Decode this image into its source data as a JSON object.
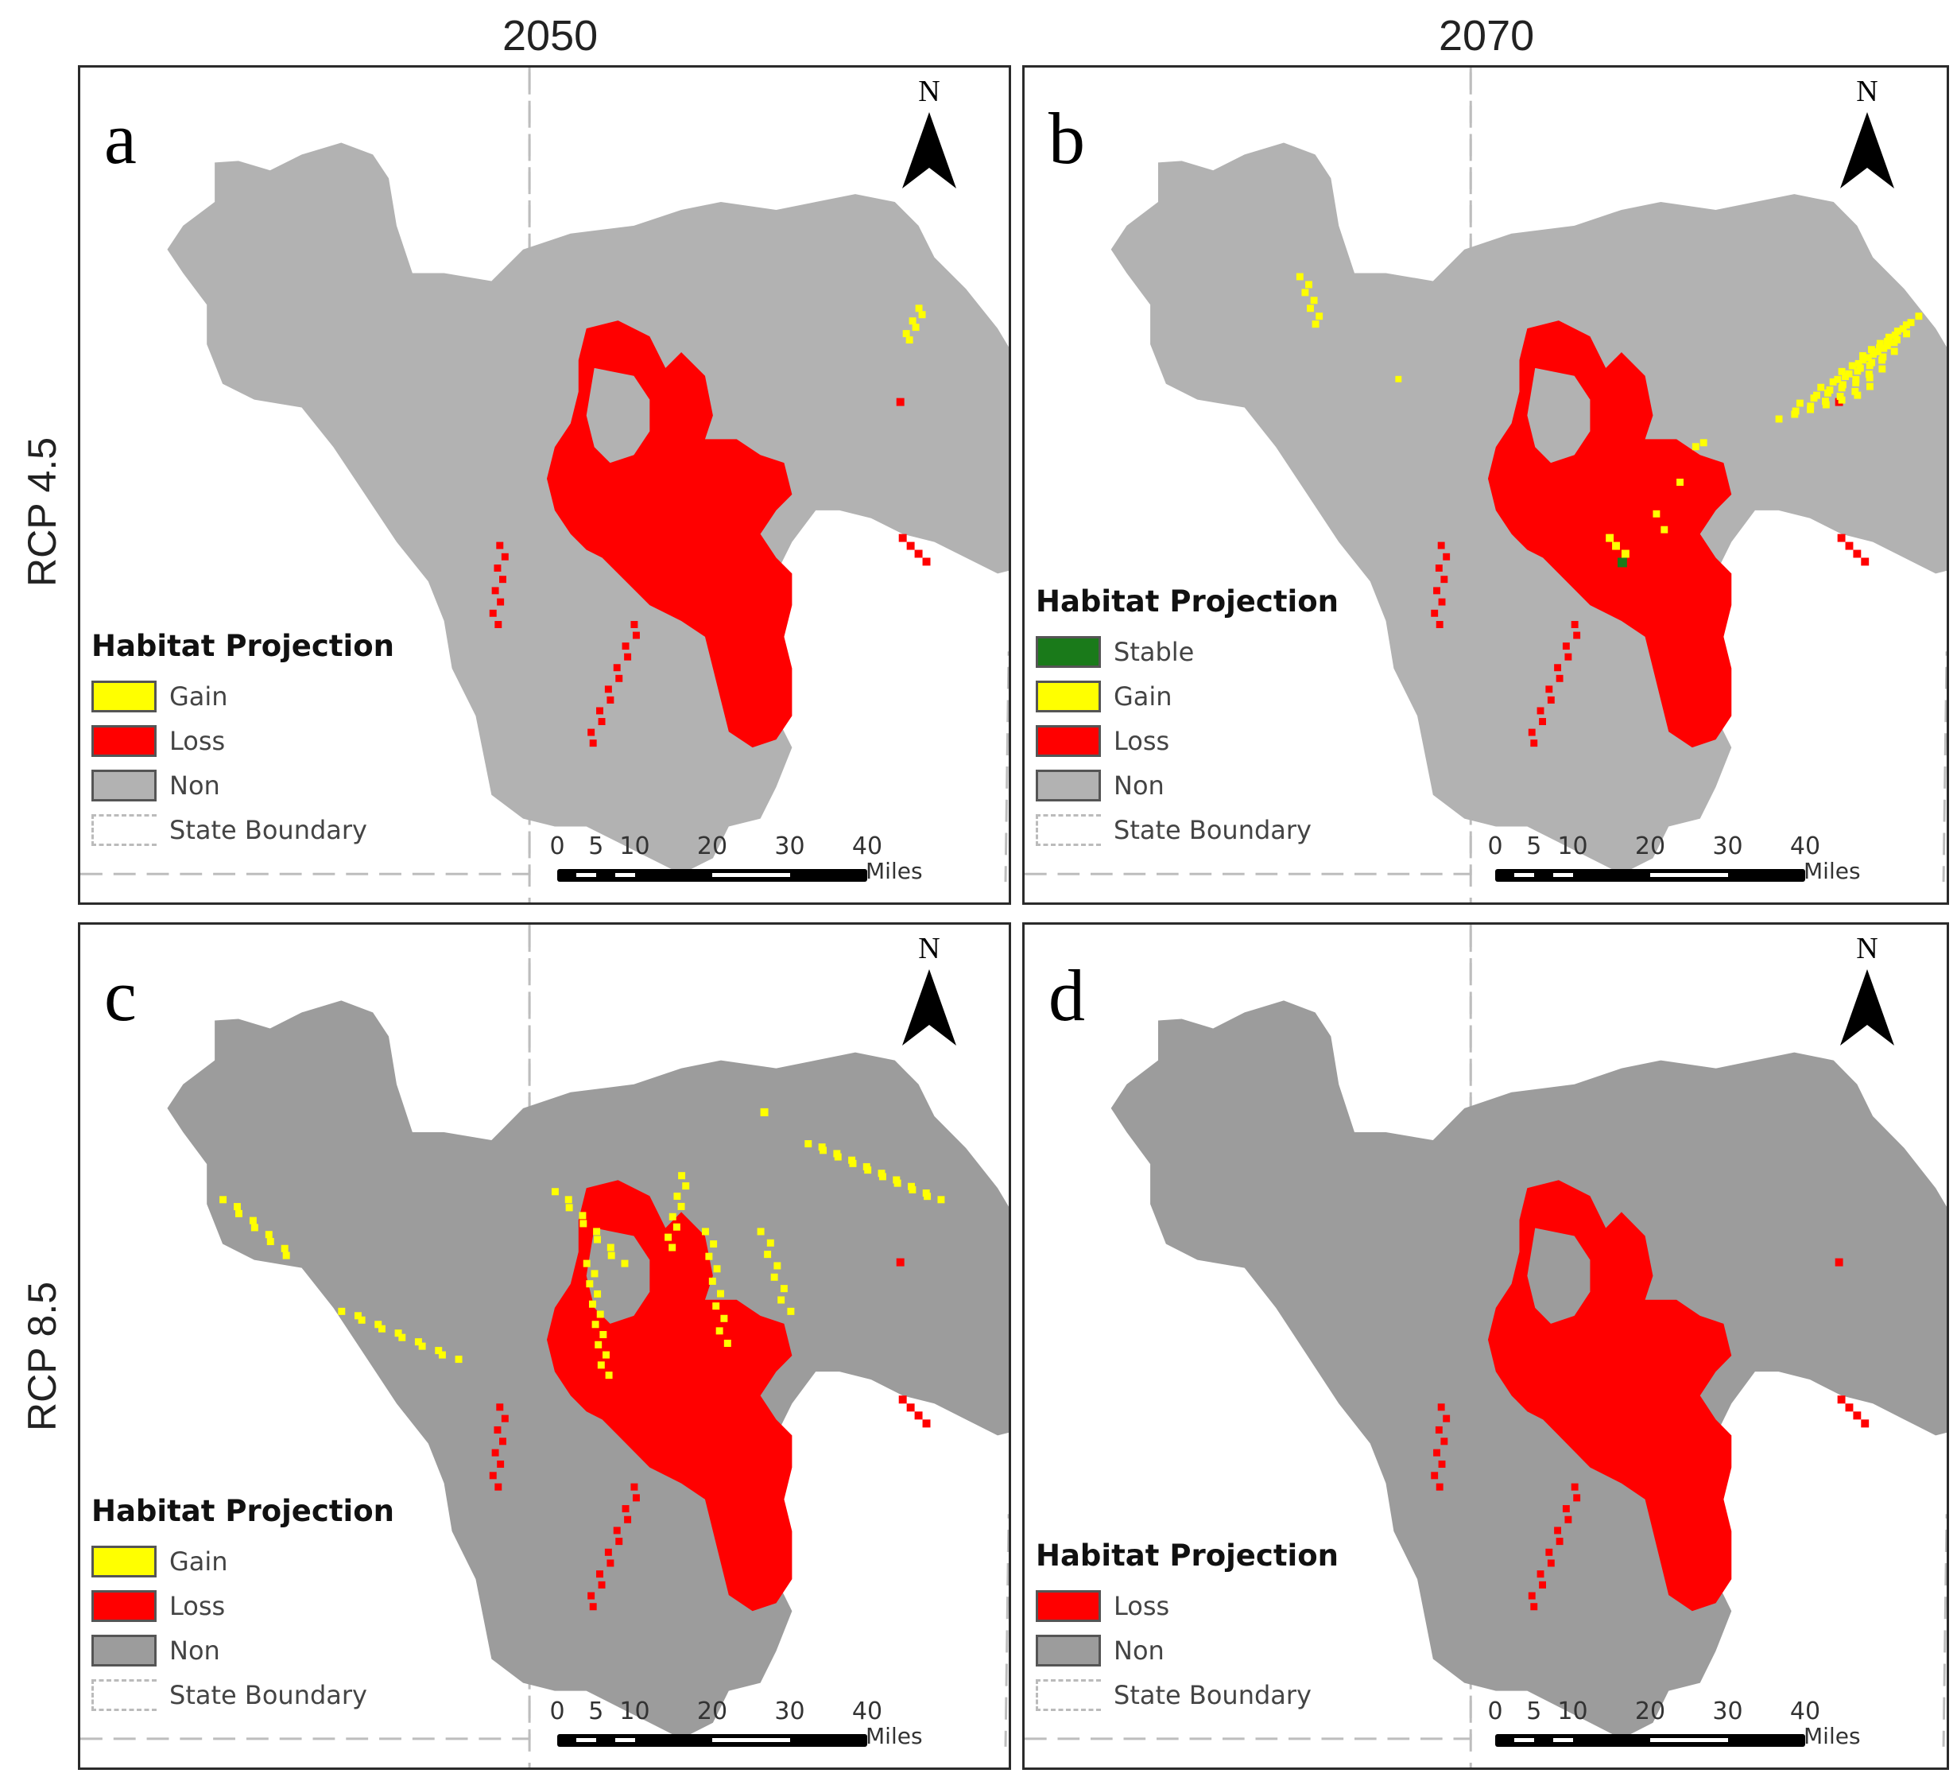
{
  "columns": [
    "2050",
    "2070"
  ],
  "rows": [
    "RCP 4.5",
    "RCP 8.5"
  ],
  "colors": {
    "gain": "#ffff00",
    "loss": "#ff0000",
    "stable": "#1a7a1a",
    "non_light": "#b2b2b2",
    "non_dark": "#9c9c9c",
    "boundary": "#bdbdbd"
  },
  "north_arrow": {
    "letter": "N",
    "icon": "north-arrow-icon"
  },
  "scale": {
    "ticks": [
      "0",
      "5",
      "10",
      "20",
      "30",
      "40"
    ],
    "unit": "Miles"
  },
  "panels": [
    {
      "letter": "a",
      "legend": {
        "title": "Habitat Projection",
        "items": [
          {
            "label": "Gain",
            "key": "gain"
          },
          {
            "label": "Loss",
            "key": "loss"
          },
          {
            "label": "Non",
            "key": "non"
          },
          {
            "label": "State Boundary",
            "key": "boundary"
          }
        ]
      }
    },
    {
      "letter": "b",
      "legend": {
        "title": "Habitat Projection",
        "items": [
          {
            "label": "Stable",
            "key": "stable"
          },
          {
            "label": "Gain",
            "key": "gain"
          },
          {
            "label": "Loss",
            "key": "loss"
          },
          {
            "label": "Non",
            "key": "non"
          },
          {
            "label": "State Boundary",
            "key": "boundary"
          }
        ]
      }
    },
    {
      "letter": "c",
      "legend": {
        "title": "Habitat Projection",
        "items": [
          {
            "label": "Gain",
            "key": "gain"
          },
          {
            "label": "Loss",
            "key": "loss"
          },
          {
            "label": "Non",
            "key": "non"
          },
          {
            "label": "State Boundary",
            "key": "boundary"
          }
        ]
      }
    },
    {
      "letter": "d",
      "legend": {
        "title": "Habitat Projection",
        "items": [
          {
            "label": "Loss",
            "key": "loss"
          },
          {
            "label": "Non",
            "key": "non"
          },
          {
            "label": "State Boundary",
            "key": "boundary"
          }
        ]
      }
    }
  ]
}
